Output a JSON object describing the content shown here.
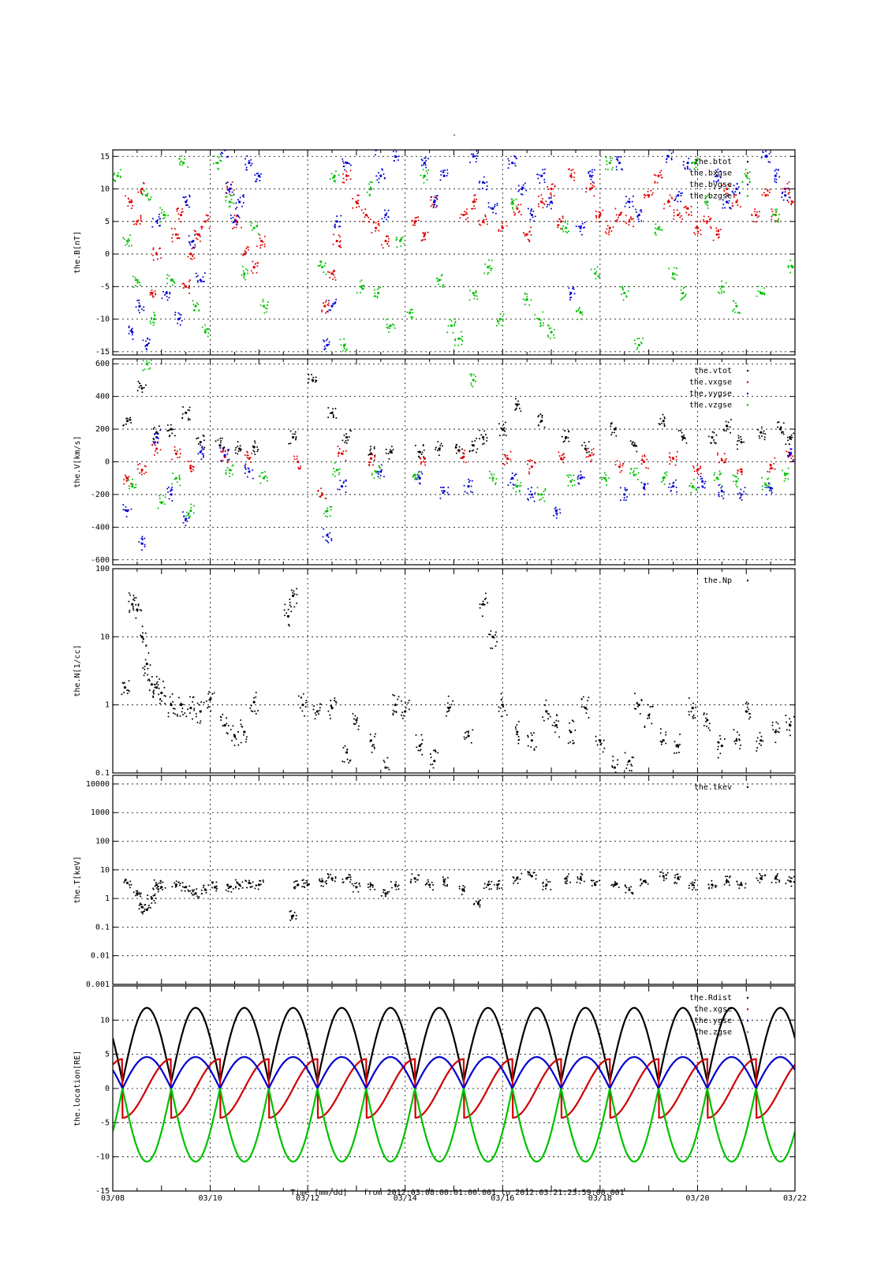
{
  "figure": {
    "title": "-",
    "xlabel": "Time [mm/dd]",
    "time_range_label": "from 2012:03:08:00:01:00.001  to  2012:03:21:23:59:00.001",
    "x_tick_labels": [
      "03/08",
      "03/10",
      "03/12",
      "03/14",
      "03/16",
      "03/18",
      "03/20",
      "03/22"
    ]
  },
  "chart_data": [
    {
      "type": "scatter",
      "panel": "B",
      "ylabel": "the.B[nT]",
      "x_unit": "days since 03/08 00:00",
      "xlim": [
        0,
        14
      ],
      "ylim": [
        -15.5,
        16
      ],
      "yticks": [
        15,
        10,
        5,
        0,
        -5,
        -10,
        -15
      ],
      "grid": true,
      "legend_position": "top-right",
      "series": [
        {
          "name": "the.btot",
          "color": "#000000",
          "x": [],
          "y": []
        },
        {
          "name": "the.bxgse",
          "color": "#e00000",
          "x": [
            0.35,
            0.5,
            0.6,
            0.8,
            0.9,
            1.3,
            1.4,
            1.5,
            1.6,
            1.75,
            1.9,
            2.4,
            2.55,
            2.7,
            2.9,
            3.05,
            4.35,
            4.5,
            4.6,
            4.8,
            5.0,
            5.2,
            5.4,
            5.6,
            6.2,
            6.4,
            6.6,
            7.2,
            7.4,
            7.6,
            8.0,
            8.3,
            8.5,
            8.8,
            9.0,
            9.2,
            9.4,
            9.8,
            10.0,
            10.2,
            10.4,
            10.6,
            11.0,
            11.2,
            11.4,
            11.6,
            11.8,
            12.0,
            12.2,
            12.4,
            12.6,
            12.8,
            13.2,
            13.4,
            13.6,
            13.8,
            13.95
          ],
          "y": [
            8,
            5,
            10,
            -6,
            0,
            3,
            6,
            -5,
            0,
            3,
            5,
            10,
            5,
            0,
            -2,
            2,
            -8,
            -3,
            2,
            12,
            8,
            6,
            4,
            2,
            5,
            3,
            8,
            6,
            8,
            5,
            4,
            7,
            3,
            8,
            10,
            5,
            12,
            10,
            6,
            4,
            6,
            5,
            9,
            12,
            8,
            6,
            7,
            4,
            5,
            3,
            10,
            8,
            6,
            9,
            6,
            10,
            8
          ]
        },
        {
          "name": "the.bygse",
          "color": "#0000d0",
          "x": [
            0.4,
            0.55,
            0.7,
            0.9,
            1.1,
            1.35,
            1.5,
            1.65,
            1.8,
            2.3,
            2.4,
            2.5,
            2.6,
            2.8,
            3.0,
            4.4,
            4.5,
            4.6,
            4.8,
            5.4,
            5.5,
            5.6,
            5.8,
            6.4,
            6.6,
            6.8,
            7.4,
            7.6,
            7.8,
            8.2,
            8.4,
            8.6,
            8.8,
            9.0,
            9.4,
            9.6,
            9.8,
            10.4,
            10.6,
            10.8,
            11.4,
            11.6,
            11.8,
            12.4,
            12.6,
            12.8,
            13.4,
            13.6,
            13.8
          ],
          "y": [
            -12,
            -8,
            -14,
            5,
            -6,
            -10,
            8,
            2,
            -4,
            16,
            10,
            5,
            8,
            14,
            12,
            -14,
            -8,
            5,
            14,
            16,
            12,
            6,
            15,
            14,
            8,
            12,
            15,
            11,
            7,
            14,
            10,
            6,
            12,
            8,
            -6,
            4,
            12,
            14,
            8,
            6,
            15,
            9,
            14,
            12,
            8,
            10,
            15,
            12,
            9
          ]
        },
        {
          "name": "the.bzgse",
          "color": "#00c000",
          "x": [
            0.1,
            0.3,
            0.5,
            0.7,
            0.85,
            1.05,
            1.2,
            1.45,
            1.7,
            1.9,
            2.15,
            2.4,
            2.7,
            2.9,
            3.1,
            4.3,
            4.55,
            4.75,
            5.1,
            5.3,
            5.45,
            5.7,
            5.9,
            6.1,
            6.4,
            6.7,
            6.95,
            7.1,
            7.4,
            7.7,
            7.95,
            8.2,
            8.5,
            8.75,
            9.0,
            9.3,
            9.6,
            9.9,
            10.2,
            10.5,
            10.8,
            11.2,
            11.5,
            11.7,
            11.95,
            12.2,
            12.5,
            12.8,
            13.0,
            13.3,
            13.6,
            13.95
          ],
          "y": [
            12,
            2,
            -4,
            9,
            -10,
            6,
            -4,
            14,
            -8,
            -12,
            14,
            8,
            -3,
            4,
            -8,
            -2,
            12,
            -14,
            -5,
            10,
            -6,
            -11,
            2,
            -9,
            12,
            -4,
            -11,
            -13,
            -6,
            -2,
            -10,
            8,
            -7,
            -10,
            -12,
            4,
            -9,
            -3,
            14,
            -6,
            -14,
            4,
            -3,
            -6,
            14,
            8,
            -5,
            -8,
            12,
            -6,
            6,
            -2
          ]
        }
      ]
    },
    {
      "type": "scatter",
      "panel": "V",
      "ylabel": "the.V[km/s]",
      "x_unit": "days since 03/08 00:00",
      "xlim": [
        0,
        14
      ],
      "ylim": [
        -630,
        630
      ],
      "yticks": [
        600,
        400,
        200,
        0,
        -200,
        -400,
        -600
      ],
      "grid": true,
      "legend_position": "top-right",
      "series": [
        {
          "name": "the.vtot",
          "color": "#000000",
          "x": [
            0.3,
            0.6,
            0.9,
            1.2,
            1.5,
            1.8,
            2.2,
            2.6,
            2.9,
            3.7,
            4.1,
            4.5,
            4.8,
            5.3,
            5.7,
            6.3,
            6.7,
            7.1,
            7.4,
            7.6,
            8.0,
            8.3,
            8.8,
            9.3,
            9.7,
            10.3,
            10.7,
            11.3,
            11.7,
            12.3,
            12.6,
            12.9,
            13.3,
            13.7,
            13.9
          ],
          "y": [
            250,
            450,
            180,
            200,
            300,
            120,
            100,
            80,
            90,
            150,
            500,
            300,
            150,
            50,
            60,
            60,
            80,
            70,
            100,
            150,
            200,
            350,
            250,
            150,
            80,
            200,
            100,
            250,
            150,
            150,
            220,
            120,
            180,
            200,
            150
          ]
        },
        {
          "name": "the.vxgse",
          "color": "#e00000",
          "x": [
            0.3,
            0.6,
            0.9,
            1.3,
            1.6,
            2.3,
            2.8,
            3.8,
            4.3,
            4.7,
            5.3,
            6.4,
            7.2,
            8.1,
            8.6,
            9.2,
            9.8,
            10.4,
            10.9,
            11.5,
            12.0,
            12.5,
            12.9,
            13.5,
            13.9
          ],
          "y": [
            -100,
            -50,
            80,
            50,
            -40,
            30,
            20,
            0,
            -200,
            50,
            20,
            20,
            30,
            20,
            -30,
            20,
            40,
            -30,
            0,
            20,
            -50,
            10,
            -60,
            -20,
            40
          ]
        },
        {
          "name": "the.vygse",
          "color": "#0000d0",
          "x": [
            0.3,
            0.6,
            0.9,
            1.2,
            1.5,
            1.8,
            2.3,
            2.8,
            4.4,
            4.7,
            5.5,
            6.3,
            6.8,
            7.3,
            8.2,
            8.6,
            9.1,
            9.6,
            10.5,
            10.9,
            11.5,
            12.1,
            12.5,
            12.9,
            13.5,
            13.9
          ],
          "y": [
            -300,
            -500,
            150,
            -200,
            -350,
            60,
            40,
            -60,
            -450,
            -150,
            -60,
            -100,
            -180,
            -150,
            -100,
            -200,
            -300,
            -100,
            -200,
            -160,
            -150,
            -120,
            -180,
            -200,
            -160,
            50
          ]
        },
        {
          "name": "the.vzgse",
          "color": "#00c000",
          "x": [
            0.4,
            0.7,
            1.0,
            1.3,
            1.6,
            2.4,
            3.1,
            4.4,
            4.6,
            5.4,
            6.2,
            7.4,
            7.8,
            8.3,
            8.8,
            9.4,
            10.1,
            10.7,
            11.3,
            11.9,
            12.4,
            12.8,
            13.4,
            13.8
          ],
          "y": [
            -150,
            600,
            -250,
            -100,
            -300,
            -50,
            -100,
            -300,
            -50,
            -60,
            -80,
            500,
            -100,
            -150,
            -200,
            -120,
            -100,
            -80,
            -100,
            -150,
            -100,
            -120,
            -140,
            -80
          ]
        }
      ]
    },
    {
      "type": "scatter",
      "panel": "N",
      "ylabel": "the.N[1/cc]",
      "x_unit": "days since 03/08 00:00",
      "xlim": [
        0,
        14
      ],
      "ylim": [
        0.1,
        100
      ],
      "yscale": "log",
      "yticks": [
        100,
        10,
        1,
        0.1
      ],
      "grid": true,
      "legend_position": "top-right",
      "series": [
        {
          "name": "the.Np",
          "color": "#000000",
          "x": [
            0.25,
            0.4,
            0.5,
            0.6,
            0.7,
            0.8,
            0.9,
            1.0,
            1.2,
            1.4,
            1.6,
            1.8,
            2.0,
            2.3,
            2.5,
            2.7,
            2.9,
            3.6,
            3.7,
            3.9,
            4.2,
            4.5,
            4.8,
            5.0,
            5.3,
            5.6,
            5.8,
            6.0,
            6.3,
            6.6,
            6.9,
            7.3,
            7.6,
            7.8,
            8.0,
            8.3,
            8.6,
            8.9,
            9.1,
            9.4,
            9.7,
            10.0,
            10.3,
            10.6,
            10.8,
            11.0,
            11.3,
            11.6,
            11.9,
            12.2,
            12.5,
            12.8,
            13.0,
            13.3,
            13.6,
            13.9
          ],
          "y": [
            1.8,
            30,
            25,
            10,
            4,
            2,
            1.8,
            1.5,
            1,
            1,
            0.9,
            0.8,
            1.2,
            0.5,
            0.35,
            0.4,
            1.1,
            20,
            40,
            1,
            0.8,
            0.9,
            0.2,
            0.6,
            0.3,
            0.12,
            1,
            0.8,
            0.25,
            0.15,
            0.9,
            0.35,
            30,
            10,
            1,
            0.4,
            0.3,
            0.8,
            0.5,
            0.4,
            0.9,
            0.3,
            0.12,
            0.15,
            1,
            0.7,
            0.3,
            0.25,
            0.9,
            0.6,
            0.25,
            0.3,
            0.8,
            0.3,
            0.4,
            0.5
          ]
        }
      ]
    },
    {
      "type": "scatter",
      "panel": "T",
      "ylabel": "the.T[keV]",
      "x_unit": "days since 03/08 00:00",
      "xlim": [
        0,
        14
      ],
      "ylim": [
        0.001,
        20000
      ],
      "yscale": "log",
      "yticks": [
        10000,
        1000,
        100,
        10,
        1,
        0.1,
        0.01,
        0.001
      ],
      "ytick_labels": [
        "10000",
        "1000",
        "100",
        "10",
        "1",
        "0.1",
        "0.01",
        "0.001"
      ],
      "grid": true,
      "legend_position": "top-right",
      "series": [
        {
          "name": "the.tkev",
          "color": "#000000",
          "x": [
            0.3,
            0.5,
            0.6,
            0.7,
            0.8,
            0.9,
            1.0,
            1.3,
            1.5,
            1.7,
            1.9,
            2.1,
            2.4,
            2.6,
            2.8,
            3.0,
            3.7,
            3.8,
            4.0,
            4.3,
            4.5,
            4.8,
            5.0,
            5.3,
            5.6,
            5.8,
            6.2,
            6.5,
            6.8,
            7.2,
            7.5,
            7.7,
            7.9,
            8.3,
            8.6,
            8.9,
            9.3,
            9.6,
            9.9,
            10.3,
            10.6,
            10.9,
            11.3,
            11.6,
            11.9,
            12.3,
            12.6,
            12.9,
            13.3,
            13.6,
            13.9
          ],
          "y": [
            3.5,
            1.5,
            0.5,
            0.4,
            1,
            3,
            2.5,
            3,
            2.5,
            1.5,
            2,
            2.5,
            2.5,
            3,
            3.5,
            3,
            0.25,
            3,
            3,
            4,
            5,
            5,
            2.5,
            3,
            1.5,
            3,
            5,
            3,
            4,
            2,
            0.7,
            3,
            3,
            5,
            6,
            3,
            5,
            5,
            3,
            3,
            2,
            4,
            6,
            5,
            3,
            3,
            4,
            3,
            5,
            5,
            4
          ]
        }
      ]
    },
    {
      "type": "line",
      "panel": "location",
      "ylabel": "the.location[RE]",
      "x_unit": "days since 03/08 00:00",
      "xlim": [
        0,
        14
      ],
      "ylim": [
        -15,
        15
      ],
      "yticks": [
        10,
        5,
        0,
        -5,
        -10,
        -15
      ],
      "grid": true,
      "legend_position": "top-right",
      "orbit_period_days": 1.0,
      "orbit_phase_days": 0.2,
      "series": [
        {
          "name": "the.Rdist",
          "color": "#000000",
          "apogee": 11.8,
          "perigee": 1.0
        },
        {
          "name": "the.xgse",
          "color": "#d00000",
          "amplitude": 4.3
        },
        {
          "name": "the.ygse",
          "color": "#0000d0",
          "amplitude": 4.6
        },
        {
          "name": "the.zgse",
          "color": "#00c000",
          "min": -10.7
        }
      ]
    }
  ]
}
